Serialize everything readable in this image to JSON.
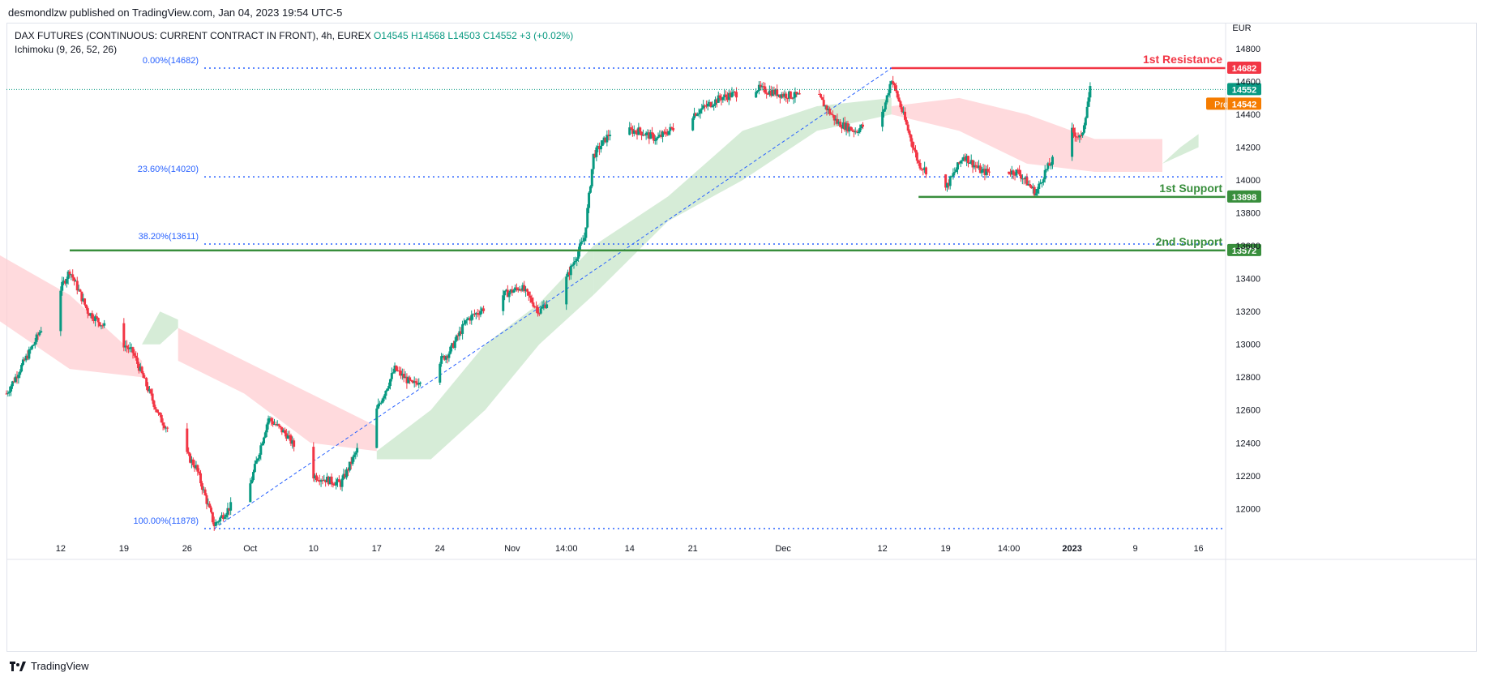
{
  "header": {
    "published_by": "desmondlzw published on TradingView.com, Jan 04, 2023 19:54 UTC-5"
  },
  "legend": {
    "symbol": "DAX FUTURES (CONTINUOUS: CURRENT CONTRACT IN FRONT), 4h, EUREX",
    "open": "O14545",
    "high": "H14568",
    "low": "L14503",
    "close": "C14552",
    "change": "+3 (+0.02%)",
    "indicator": "Ichimoku (9, 26, 52, 26)"
  },
  "footer": {
    "brand": "TradingView"
  },
  "colors": {
    "up": "#089981",
    "down": "#f23645",
    "resistance": "#f23645",
    "support": "#388e3c",
    "fib": "#2962ff",
    "cloud_bull": "#c8e6c9",
    "cloud_bear": "#ffcdd2",
    "pre": "#f57c00"
  },
  "icons": {
    "brand": "tradingview-logo-icon"
  },
  "chart_data": {
    "type": "candlestick",
    "currency": "EUR",
    "ylim": [
      11850,
      14900
    ],
    "y_ticks": [
      12000,
      12200,
      12400,
      12600,
      12800,
      13000,
      13200,
      13400,
      13600,
      13800,
      14000,
      14200,
      14400,
      14600,
      14800
    ],
    "x_ticks": [
      {
        "label": "12",
        "date": "2022-09-12"
      },
      {
        "label": "19",
        "date": "2022-09-19"
      },
      {
        "label": "26",
        "date": "2022-09-26"
      },
      {
        "label": "Oct",
        "date": "2022-10-03"
      },
      {
        "label": "10",
        "date": "2022-10-10"
      },
      {
        "label": "17",
        "date": "2022-10-17"
      },
      {
        "label": "24",
        "date": "2022-10-24"
      },
      {
        "label": "Nov",
        "date": "2022-11-01"
      },
      {
        "label": "14:00",
        "date": "2022-11-07"
      },
      {
        "label": "14",
        "date": "2022-11-14"
      },
      {
        "label": "21",
        "date": "2022-11-21"
      },
      {
        "label": "Dec",
        "date": "2022-12-01"
      },
      {
        "label": "12",
        "date": "2022-12-12"
      },
      {
        "label": "19",
        "date": "2022-12-19"
      },
      {
        "label": "14:00",
        "date": "2022-12-26"
      },
      {
        "label": "2023",
        "date": "2023-01-02"
      },
      {
        "label": "9",
        "date": "2023-01-09"
      },
      {
        "label": "16",
        "date": "2023-01-16"
      }
    ],
    "trend_path": [
      [
        "2022-09-06",
        12700
      ],
      [
        "2022-09-09",
        13000
      ],
      [
        "2022-09-13",
        13450
      ],
      [
        "2022-09-15",
        13200
      ],
      [
        "2022-09-20",
        12950
      ],
      [
        "2022-09-23",
        12550
      ],
      [
        "2022-09-27",
        12250
      ],
      [
        "2022-09-29",
        11900
      ],
      [
        "2022-10-03",
        12150
      ],
      [
        "2022-10-05",
        12550
      ],
      [
        "2022-10-07",
        12450
      ],
      [
        "2022-10-10",
        12200
      ],
      [
        "2022-10-13",
        12150
      ],
      [
        "2022-10-17",
        12600
      ],
      [
        "2022-10-19",
        12850
      ],
      [
        "2022-10-21",
        12750
      ],
      [
        "2022-10-25",
        12950
      ],
      [
        "2022-10-27",
        13150
      ],
      [
        "2022-10-31",
        13300
      ],
      [
        "2022-11-02",
        13350
      ],
      [
        "2022-11-04",
        13200
      ],
      [
        "2022-11-07",
        13400
      ],
      [
        "2022-11-09",
        13650
      ],
      [
        "2022-11-10",
        14150
      ],
      [
        "2022-11-12",
        14300
      ],
      [
        "2022-11-15",
        14300
      ],
      [
        "2022-11-17",
        14250
      ],
      [
        "2022-11-21",
        14400
      ],
      [
        "2022-11-24",
        14500
      ],
      [
        "2022-11-28",
        14560
      ],
      [
        "2022-12-01",
        14520
      ],
      [
        "2022-12-05",
        14500
      ],
      [
        "2022-12-07",
        14350
      ],
      [
        "2022-12-09",
        14300
      ],
      [
        "2022-12-12",
        14400
      ],
      [
        "2022-12-13",
        14620
      ],
      [
        "2022-12-14",
        14450
      ],
      [
        "2022-12-16",
        14100
      ],
      [
        "2022-12-19",
        13950
      ],
      [
        "2022-12-21",
        14150
      ],
      [
        "2022-12-23",
        14050
      ],
      [
        "2022-12-27",
        14050
      ],
      [
        "2022-12-29",
        13920
      ],
      [
        "2022-12-30",
        14050
      ],
      [
        "2023-01-02",
        14300
      ],
      [
        "2023-01-03",
        14250
      ],
      [
        "2023-01-04",
        14552
      ]
    ],
    "cloud_segments": [
      {
        "type": "bear",
        "from": "2022-09-05",
        "to": "2022-09-21",
        "top": [
          13550,
          13300,
          12900
        ],
        "bottom": [
          13150,
          12850,
          12800
        ]
      },
      {
        "type": "bull",
        "from": "2022-09-21",
        "to": "2022-09-25",
        "top": [
          13000,
          13200,
          13150
        ],
        "bottom": [
          13000,
          13000,
          13100
        ]
      },
      {
        "type": "bear",
        "from": "2022-09-25",
        "to": "2022-10-17",
        "top": [
          13100,
          12900,
          12700,
          12500
        ],
        "bottom": [
          12900,
          12700,
          12400,
          12350
        ]
      },
      {
        "type": "bull",
        "from": "2022-10-17",
        "to": "2022-11-10",
        "top": [
          12350,
          12600,
          13000,
          13250,
          13600
        ],
        "bottom": [
          12300,
          12300,
          12600,
          13000,
          13300
        ]
      },
      {
        "type": "bull",
        "from": "2022-11-10",
        "to": "2022-12-13",
        "top": [
          13600,
          13900,
          14300,
          14450,
          14500
        ],
        "bottom": [
          13300,
          13750,
          14000,
          14300,
          14400
        ]
      },
      {
        "type": "bear",
        "from": "2022-12-13",
        "to": "2023-01-12",
        "top": [
          14450,
          14500,
          14400,
          14250,
          14250
        ],
        "bottom": [
          14400,
          14300,
          14100,
          14050,
          14050
        ]
      },
      {
        "type": "bull",
        "from": "2023-01-12",
        "to": "2023-01-16",
        "top": [
          14100,
          14200,
          14280
        ],
        "bottom": [
          14100,
          14150,
          14200
        ]
      }
    ],
    "horizontal_levels": [
      {
        "name": "1st Resistance",
        "value": 14682,
        "label": "14682",
        "color": "resistance",
        "from": "2022-12-13"
      },
      {
        "name": "1st Support",
        "value": 13898,
        "label": "13898",
        "color": "support",
        "from": "2022-12-16"
      },
      {
        "name": "2nd Support",
        "value": 13572,
        "label": "13572",
        "color": "support",
        "from": "2022-09-13"
      }
    ],
    "fib_levels": [
      {
        "label": "0.00%(14682)",
        "value": 14682
      },
      {
        "label": "23.60%(14020)",
        "value": 14020
      },
      {
        "label": "38.20%(13611)",
        "value": 13611
      },
      {
        "label": "100.00%(11878)",
        "value": 11878
      }
    ],
    "fib_anchor": {
      "start_date": "2022-09-29",
      "start": 11878,
      "end_date": "2022-12-13",
      "end": 14682
    },
    "last_price": {
      "value": 14552,
      "label": "14552"
    },
    "pre_market": {
      "tag": "Pre",
      "value": 14542,
      "label": "14542"
    }
  }
}
